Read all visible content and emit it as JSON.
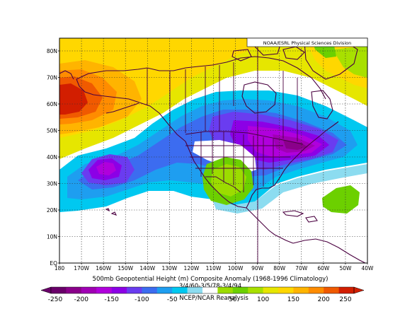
{
  "map": {
    "credit": "NOAA/ESRL Physical Sciences Division",
    "lat_labels": [
      "80N",
      "70N",
      "60N",
      "50N",
      "40N",
      "30N",
      "20N",
      "10N",
      "EQ"
    ],
    "lon_labels": [
      "180",
      "170W",
      "160W",
      "150W",
      "140W",
      "130W",
      "120W",
      "110W",
      "100W",
      "90W",
      "80W",
      "70W",
      "60W",
      "50W",
      "40W"
    ],
    "title_line": "500mb Geopotential Height (m) Composite Anomaly (1968-1996 Climatology)",
    "date_line": "3/4/60-3/5/78-3/4/94",
    "source_line": "NCEP/NCAR Reanalysis",
    "colorbar_ticks": [
      "-250",
      "-200",
      "-150",
      "-100",
      "-50",
      "50",
      "100",
      "150",
      "200",
      "250"
    ],
    "colors": {
      "c_m250": "#6a006a",
      "c_m225": "#8a008a",
      "c_m200": "#a000b4",
      "c_m175": "#b000dc",
      "c_m150": "#8c00e6",
      "c_m125": "#6a3cf0",
      "c_m100": "#3c6cf0",
      "c_m75": "#1e9ef0",
      "c_m50": "#00c8f0",
      "c_m25": "#8cdcf0",
      "zero": "#ffffff",
      "c_p25": "#9cdc00",
      "c_p50": "#6cd000",
      "c_p75": "#a8e000",
      "c_p100": "#e6e600",
      "c_p125": "#ffd700",
      "c_p150": "#ffb400",
      "c_p175": "#ff8c00",
      "c_p200": "#f05a00",
      "c_p250": "#d21e00",
      "land": "#4a0040"
    }
  }
}
